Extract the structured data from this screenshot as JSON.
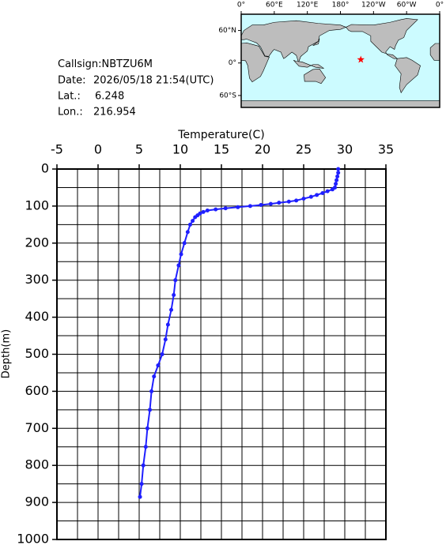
{
  "chart_data": {
    "type": "line",
    "x_label": "Temperature(C)",
    "y_label": "Depth(m)",
    "xlim": [
      -5,
      35
    ],
    "xticks": [
      -5,
      0,
      5,
      10,
      15,
      20,
      25,
      30,
      35
    ],
    "ylim": [
      0,
      1000
    ],
    "yticks": [
      0,
      100,
      200,
      300,
      400,
      500,
      600,
      700,
      800,
      900,
      1000
    ],
    "y_inverted": true,
    "grid": true,
    "color": "#1f1fff",
    "x": [
      29.2,
      29.2,
      29.1,
      29.0,
      28.9,
      28.8,
      28.5,
      27.9,
      27.3,
      26.6,
      25.9,
      25.0,
      24.1,
      23.2,
      22.0,
      21.0,
      19.8,
      18.5,
      17.0,
      15.5,
      14.3,
      13.3,
      12.8,
      12.4,
      12.1,
      11.8,
      11.5,
      11.2,
      10.9,
      10.5,
      10.1,
      9.8,
      9.4,
      9.2,
      8.9,
      8.5,
      8.2,
      7.8,
      7.3,
      6.8,
      6.5,
      6.3,
      6.0,
      5.8,
      5.5,
      5.3,
      5.1
    ],
    "y": [
      0,
      10,
      20,
      30,
      40,
      50,
      55,
      60,
      65,
      70,
      75,
      80,
      85,
      88,
      91,
      94,
      97,
      100,
      103,
      106,
      109,
      112,
      116,
      120,
      125,
      130,
      140,
      150,
      170,
      200,
      230,
      260,
      300,
      340,
      380,
      420,
      460,
      500,
      530,
      560,
      600,
      650,
      700,
      750,
      800,
      850,
      885
    ]
  },
  "station": {
    "callsign_label": "Callsign:",
    "callsign": "NBTZU6M",
    "date_label": "Date:",
    "date": "2026/05/18 21:54(UTC)",
    "lat_label": "Lat.:",
    "lat": 6.248,
    "lon_label": "Lon.:",
    "lon": 216.954
  },
  "map": {
    "lonlim": [
      0,
      360
    ],
    "latlim": [
      -82,
      90
    ],
    "lon_ticks": [
      {
        "value": 0,
        "label": "0°"
      },
      {
        "value": 60,
        "label": "60°E"
      },
      {
        "value": 120,
        "label": "120°E"
      },
      {
        "value": 180,
        "label": "180°"
      },
      {
        "value": 240,
        "label": "120°W"
      },
      {
        "value": 300,
        "label": "60°W"
      },
      {
        "value": 360,
        "label": "0°"
      }
    ],
    "lat_ticks": [
      {
        "value": 60,
        "label": "60°N"
      },
      {
        "value": 0,
        "label": "0°"
      },
      {
        "value": -60,
        "label": "60°S"
      }
    ]
  }
}
